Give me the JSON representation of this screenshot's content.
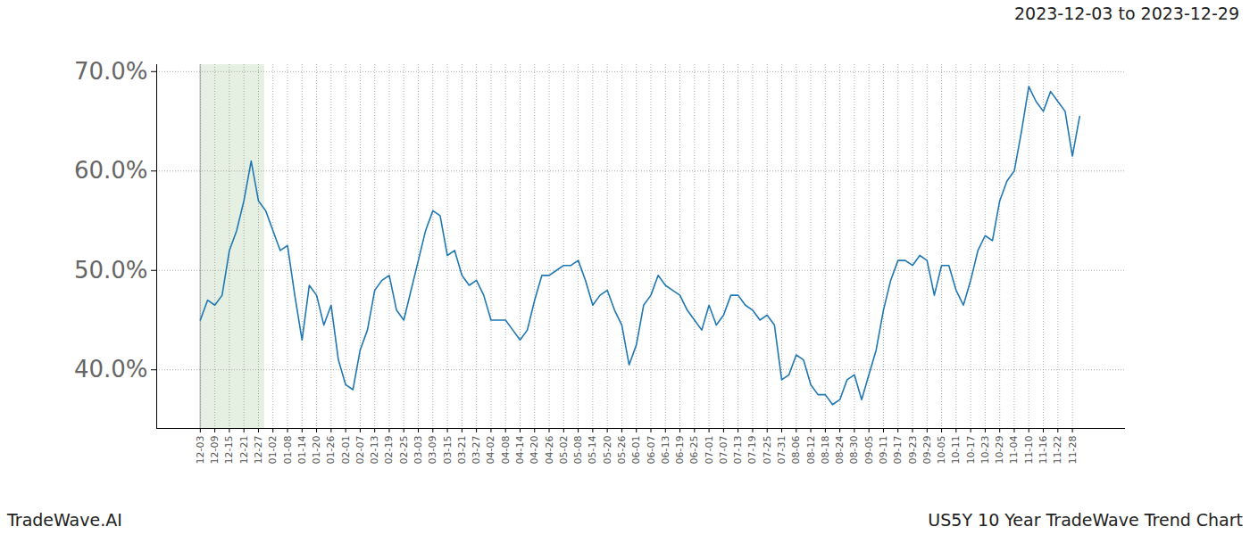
{
  "chart_data": {
    "type": "line",
    "title": "US5Y 10 Year TradeWave Trend Chart",
    "subtitle": "2023-12-03 to 2023-12-29",
    "caption": "TradeWave.AI",
    "color": "#1f77b4",
    "grid": true,
    "highlight": [
      0,
      8.85
    ],
    "ylim": [
      34.1,
      70.7
    ],
    "yticks": [
      {
        "value": 40,
        "label": "40.0%"
      },
      {
        "value": 50,
        "label": "50.0%"
      },
      {
        "value": 60,
        "label": "60.0%"
      },
      {
        "value": 70,
        "label": "70.0%"
      }
    ],
    "categories": [
      "12-03",
      null,
      "12-09",
      null,
      "12-15",
      null,
      "12-21",
      null,
      "12-27",
      null,
      "01-02",
      null,
      "01-08",
      null,
      "01-14",
      null,
      "01-20",
      null,
      "01-26",
      null,
      "02-01",
      null,
      "02-07",
      null,
      "02-13",
      null,
      "02-19",
      null,
      "02-25",
      null,
      "03-03",
      null,
      "03-09",
      null,
      "03-15",
      null,
      "03-21",
      null,
      "03-27",
      null,
      "04-02",
      null,
      "04-08",
      null,
      "04-14",
      null,
      "04-20",
      null,
      "04-26",
      null,
      "05-02",
      null,
      "05-08",
      null,
      "05-14",
      null,
      "05-20",
      null,
      "05-26",
      null,
      "06-01",
      null,
      "06-07",
      null,
      "06-13",
      null,
      "06-19",
      null,
      "06-25",
      null,
      "07-01",
      null,
      "07-07",
      null,
      "07-13",
      null,
      "07-19",
      null,
      "07-25",
      null,
      "07-31",
      null,
      "08-06",
      null,
      "08-12",
      null,
      "08-18",
      null,
      "08-24",
      null,
      "08-30",
      null,
      "09-05",
      null,
      "09-11",
      null,
      "09-17",
      null,
      "09-23",
      null,
      "09-29",
      null,
      "10-05",
      null,
      "10-11",
      null,
      "10-17",
      null,
      "10-23",
      null,
      "10-29",
      null,
      "11-04",
      null,
      "11-10",
      null,
      "11-16",
      null,
      "11-22",
      null,
      "11-28",
      null
    ],
    "values": [
      45,
      47,
      46.5,
      47.5,
      52,
      54,
      57,
      61,
      57,
      56,
      54,
      52,
      52.5,
      47.5,
      43,
      48.5,
      47.5,
      44.5,
      46.5,
      41,
      38.5,
      38,
      42,
      44,
      48,
      49,
      49.5,
      46,
      45,
      48,
      51,
      54,
      56,
      55.5,
      51.5,
      52,
      49.5,
      48.5,
      49,
      47.5,
      45,
      45,
      45,
      44,
      43,
      44,
      47,
      49.5,
      49.5,
      50,
      50.5,
      50.5,
      51,
      49,
      46.5,
      47.5,
      48,
      46,
      44.5,
      40.5,
      42.5,
      46.5,
      47.5,
      49.5,
      48.5,
      48,
      47.5,
      46,
      45,
      44,
      46.5,
      44.5,
      45.5,
      47.5,
      47.5,
      46.5,
      46,
      45,
      45.5,
      44.5,
      39,
      39.5,
      41.5,
      41,
      38.5,
      37.5,
      37.5,
      36.5,
      37,
      39,
      39.5,
      37,
      39.5,
      42,
      46,
      49,
      51,
      51,
      50.5,
      51.5,
      51,
      47.5,
      50.5,
      50.5,
      48,
      46.5,
      49,
      52,
      53.5,
      53,
      57,
      59,
      60,
      64,
      68.5,
      67,
      66,
      68,
      67,
      66,
      61.5,
      65.5
    ]
  }
}
